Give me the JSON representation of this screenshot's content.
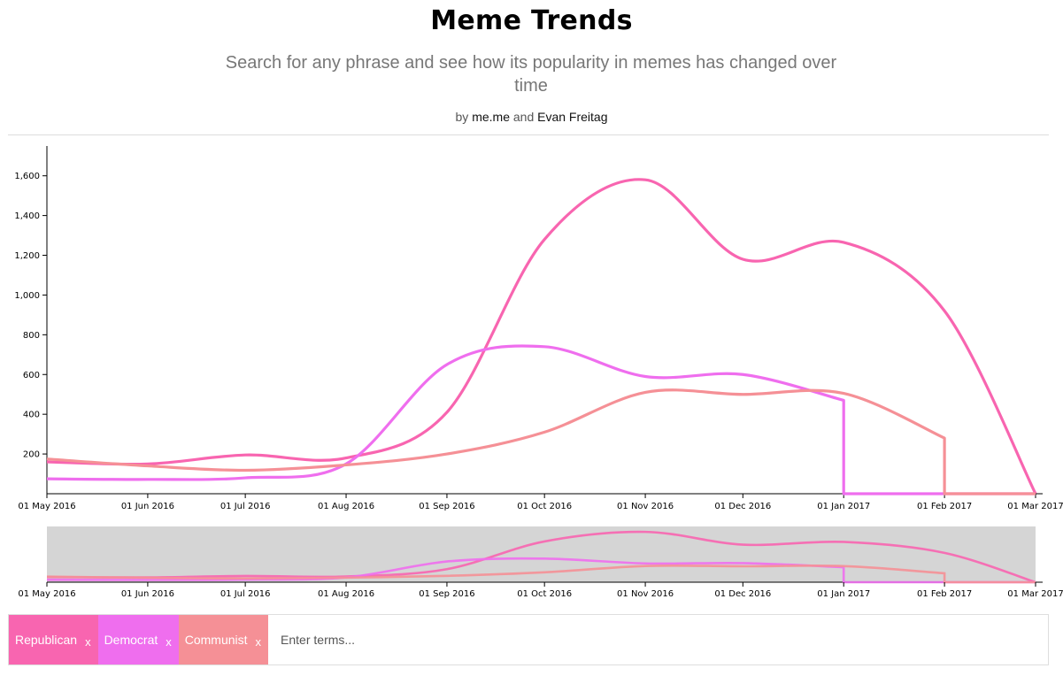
{
  "header": {
    "title": "Meme Trends",
    "subtitle": "Search for any phrase and see how its popularity in memes has changed over time",
    "byline_prefix": "by",
    "author1": "me.me",
    "byline_and": "and",
    "author2": "Evan Freitag"
  },
  "search": {
    "placeholder": "Enter terms...",
    "value": "",
    "remove_label": "x",
    "tags": [
      {
        "label": "Republican",
        "color": "#f865b0"
      },
      {
        "label": "Democrat",
        "color": "#ef6eee"
      },
      {
        "label": "Communist",
        "color": "#f59096"
      }
    ]
  },
  "chart_data": {
    "type": "line",
    "title": "",
    "xlabel": "",
    "ylabel": "",
    "x_ticks": [
      "01 May 2016",
      "01 Jun 2016",
      "01 Jul 2016",
      "01 Aug 2016",
      "01 Sep 2016",
      "01 Oct 2016",
      "01 Nov 2016",
      "01 Dec 2016",
      "01 Jan 2017",
      "01 Feb 2017",
      "01 Mar 2017"
    ],
    "y_ticks": [
      "200",
      "400",
      "600",
      "800",
      "1,000",
      "1,200",
      "1,400",
      "1,600"
    ],
    "xlim": [
      "2016-05-01",
      "2017-03-01"
    ],
    "ylim": [
      0,
      1750
    ],
    "grid": false,
    "series": [
      {
        "name": "Republican",
        "color": "#f865b0",
        "points": [
          [
            "2016-05-01",
            160
          ],
          [
            "2016-06-01",
            150
          ],
          [
            "2016-07-01",
            195
          ],
          [
            "2016-08-01",
            180
          ],
          [
            "2016-09-01",
            410
          ],
          [
            "2016-10-01",
            1280
          ],
          [
            "2016-11-01",
            1580
          ],
          [
            "2016-12-01",
            1180
          ],
          [
            "2017-01-01",
            1265
          ],
          [
            "2017-02-01",
            920
          ],
          [
            "2017-03-01",
            0
          ]
        ]
      },
      {
        "name": "Democrat",
        "color": "#ef6eee",
        "points": [
          [
            "2016-05-01",
            75
          ],
          [
            "2016-06-01",
            72
          ],
          [
            "2016-07-01",
            80
          ],
          [
            "2016-08-01",
            150
          ],
          [
            "2016-09-01",
            650
          ],
          [
            "2016-10-01",
            740
          ],
          [
            "2016-11-01",
            590
          ],
          [
            "2016-12-01",
            600
          ],
          [
            "2017-01-01",
            470
          ],
          [
            "2017-01-01",
            0
          ],
          [
            "2017-03-01",
            0
          ]
        ]
      },
      {
        "name": "Communist",
        "color": "#f59096",
        "points": [
          [
            "2016-05-01",
            175
          ],
          [
            "2016-06-01",
            140
          ],
          [
            "2016-07-01",
            118
          ],
          [
            "2016-08-01",
            145
          ],
          [
            "2016-09-01",
            200
          ],
          [
            "2016-10-01",
            310
          ],
          [
            "2016-11-01",
            510
          ],
          [
            "2016-12-01",
            500
          ],
          [
            "2017-01-01",
            505
          ],
          [
            "2017-02-01",
            280
          ],
          [
            "2017-02-01",
            0
          ],
          [
            "2017-03-01",
            0
          ]
        ]
      }
    ],
    "brush": {
      "background": "#d5d5d5",
      "x_range": [
        "2016-05-01",
        "2017-03-01"
      ]
    }
  }
}
